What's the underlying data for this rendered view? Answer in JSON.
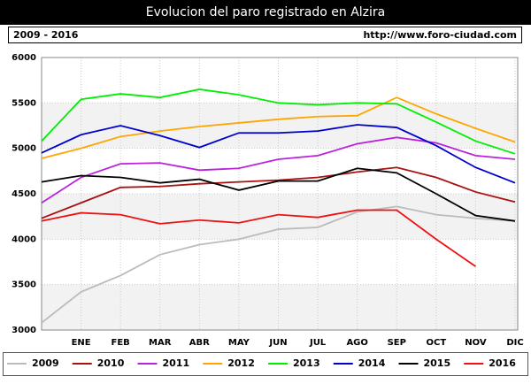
{
  "chart_data": {
    "type": "line",
    "title": "Evolucion del paro registrado en Alzira",
    "subtitle": "2009 - 2016",
    "source": "http://www.foro-ciudad.com",
    "categories": [
      null,
      "ENE",
      "FEB",
      "MAR",
      "ABR",
      "MAY",
      "JUN",
      "JUL",
      "AGO",
      "SEP",
      "OCT",
      "NOV",
      "DIC"
    ],
    "ylim": [
      3000,
      6000
    ],
    "yticks": [
      3000,
      3500,
      4000,
      4500,
      5000,
      5500,
      6000
    ],
    "grid": true,
    "legend": "bottom",
    "series": [
      {
        "name": "2009",
        "color": "#bbbbbb",
        "values": [
          3080,
          3420,
          3600,
          3830,
          3940,
          4000,
          4110,
          4130,
          4300,
          4360,
          4270,
          4230,
          4200
        ]
      },
      {
        "name": "2010",
        "color": "#aa1111",
        "values": [
          4230,
          4400,
          4570,
          4580,
          4610,
          4630,
          4650,
          4680,
          4740,
          4790,
          4680,
          4520,
          4410
        ]
      },
      {
        "name": "2011",
        "color": "#bb22dd",
        "values": [
          4400,
          4680,
          4830,
          4840,
          4760,
          4780,
          4880,
          4920,
          5050,
          5120,
          5060,
          4920,
          4880
        ]
      },
      {
        "name": "2012",
        "color": "#ffa500",
        "values": [
          4890,
          5000,
          5130,
          5190,
          5240,
          5280,
          5320,
          5350,
          5360,
          5560,
          5380,
          5220,
          5070
        ]
      },
      {
        "name": "2013",
        "color": "#00ee00",
        "values": [
          5080,
          5540,
          5600,
          5560,
          5650,
          5590,
          5500,
          5480,
          5500,
          5490,
          5290,
          5080,
          4940
        ]
      },
      {
        "name": "2014",
        "color": "#0000cc",
        "values": [
          4950,
          5150,
          5250,
          5140,
          5010,
          5170,
          5170,
          5190,
          5260,
          5230,
          5030,
          4790,
          4620
        ]
      },
      {
        "name": "2015",
        "color": "#000000",
        "values": [
          4630,
          4700,
          4680,
          4620,
          4660,
          4540,
          4640,
          4640,
          4780,
          4730,
          4500,
          4260,
          4200
        ]
      },
      {
        "name": "2016",
        "color": "#ee1111",
        "values": [
          4200,
          4290,
          4270,
          4170,
          4210,
          4180,
          4270,
          4240,
          4320,
          4320,
          4000,
          3700,
          null
        ]
      }
    ]
  }
}
